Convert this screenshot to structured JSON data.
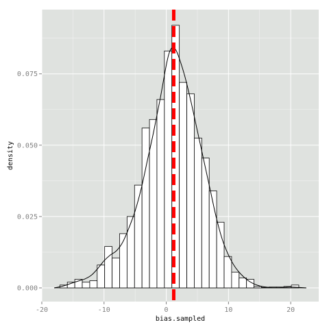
{
  "chart_data": {
    "type": "bar",
    "subtype": "histogram_with_density",
    "title": "",
    "xlabel": "bias.sampled",
    "ylabel": "density",
    "xlim": [
      -20,
      24.5
    ],
    "ylim": [
      -0.0048,
      0.0975
    ],
    "x_ticks": [
      -20,
      -10,
      0,
      10,
      20
    ],
    "x_tick_labels": [
      "-20",
      "-10",
      "0",
      "10",
      "20"
    ],
    "y_ticks": [
      0.0,
      0.025,
      0.05,
      0.075
    ],
    "y_tick_labels": [
      "0.000",
      "0.025",
      "0.050",
      "0.075"
    ],
    "grid": true,
    "panel_background": "#dfe2df",
    "gridline_color": "#ffffff",
    "bar_fill": "#ffffff",
    "bar_edge": "#000000",
    "bin_width": 1.2,
    "bins": [
      {
        "x0": -17.1,
        "x1": -15.9,
        "density": 0.001
      },
      {
        "x0": -15.9,
        "x1": -14.7,
        "density": 0.002
      },
      {
        "x0": -14.7,
        "x1": -13.5,
        "density": 0.003
      },
      {
        "x0": -13.5,
        "x1": -12.3,
        "density": 0.002
      },
      {
        "x0": -12.3,
        "x1": -11.1,
        "density": 0.0025
      },
      {
        "x0": -11.1,
        "x1": -9.9,
        "density": 0.008
      },
      {
        "x0": -9.9,
        "x1": -8.7,
        "density": 0.0145
      },
      {
        "x0": -8.7,
        "x1": -7.5,
        "density": 0.0105
      },
      {
        "x0": -7.5,
        "x1": -6.3,
        "density": 0.019
      },
      {
        "x0": -6.3,
        "x1": -5.1,
        "density": 0.025
      },
      {
        "x0": -5.1,
        "x1": -3.9,
        "density": 0.036
      },
      {
        "x0": -3.9,
        "x1": -2.7,
        "density": 0.056
      },
      {
        "x0": -2.7,
        "x1": -1.5,
        "density": 0.059
      },
      {
        "x0": -1.5,
        "x1": -0.3,
        "density": 0.066
      },
      {
        "x0": -0.3,
        "x1": 0.9,
        "density": 0.083
      },
      {
        "x0": 0.9,
        "x1": 2.1,
        "density": 0.092
      },
      {
        "x0": 2.1,
        "x1": 3.3,
        "density": 0.072
      },
      {
        "x0": 3.3,
        "x1": 4.5,
        "density": 0.068
      },
      {
        "x0": 4.5,
        "x1": 5.7,
        "density": 0.0525
      },
      {
        "x0": 5.7,
        "x1": 6.9,
        "density": 0.0455
      },
      {
        "x0": 6.9,
        "x1": 8.1,
        "density": 0.034
      },
      {
        "x0": 8.1,
        "x1": 9.3,
        "density": 0.023
      },
      {
        "x0": 9.3,
        "x1": 10.5,
        "density": 0.011
      },
      {
        "x0": 10.5,
        "x1": 11.7,
        "density": 0.0055
      },
      {
        "x0": 11.7,
        "x1": 12.9,
        "density": 0.0035
      },
      {
        "x0": 12.9,
        "x1": 14.1,
        "density": 0.003
      },
      {
        "x0": 14.1,
        "x1": 15.3,
        "density": 0.0005
      },
      {
        "x0": 15.3,
        "x1": 16.5,
        "density": 0.0002
      },
      {
        "x0": 16.5,
        "x1": 17.7,
        "density": 0.0003
      },
      {
        "x0": 17.7,
        "x1": 18.9,
        "density": 0.0003
      },
      {
        "x0": 18.9,
        "x1": 20.1,
        "density": 0.0005
      },
      {
        "x0": 20.1,
        "x1": 21.3,
        "density": 0.001
      }
    ],
    "density_curve": {
      "x": [
        -18,
        -16.5,
        -15,
        -14,
        -13,
        -12,
        -11,
        -10,
        -9,
        -8,
        -7,
        -6,
        -5,
        -4,
        -3,
        -2,
        -1,
        0,
        0.5,
        1,
        1.5,
        2,
        3,
        4,
        5,
        6,
        7,
        8,
        9,
        10,
        11,
        12,
        13,
        14,
        15,
        16,
        17,
        18,
        19,
        20,
        21,
        22.5
      ],
      "y": [
        0.0,
        0.0007,
        0.0018,
        0.0025,
        0.0032,
        0.0045,
        0.0068,
        0.0095,
        0.0115,
        0.013,
        0.016,
        0.021,
        0.027,
        0.035,
        0.045,
        0.055,
        0.066,
        0.078,
        0.0825,
        0.0842,
        0.0835,
        0.081,
        0.074,
        0.065,
        0.055,
        0.045,
        0.035,
        0.025,
        0.017,
        0.0115,
        0.0075,
        0.0048,
        0.0028,
        0.0015,
        0.0007,
        0.0003,
        0.0001,
        0.0001,
        0.0002,
        0.0003,
        0.0002,
        0.0
      ]
    },
    "reference_line": {
      "x": 1.2,
      "color": "#ff0000",
      "style": "dashed"
    }
  }
}
